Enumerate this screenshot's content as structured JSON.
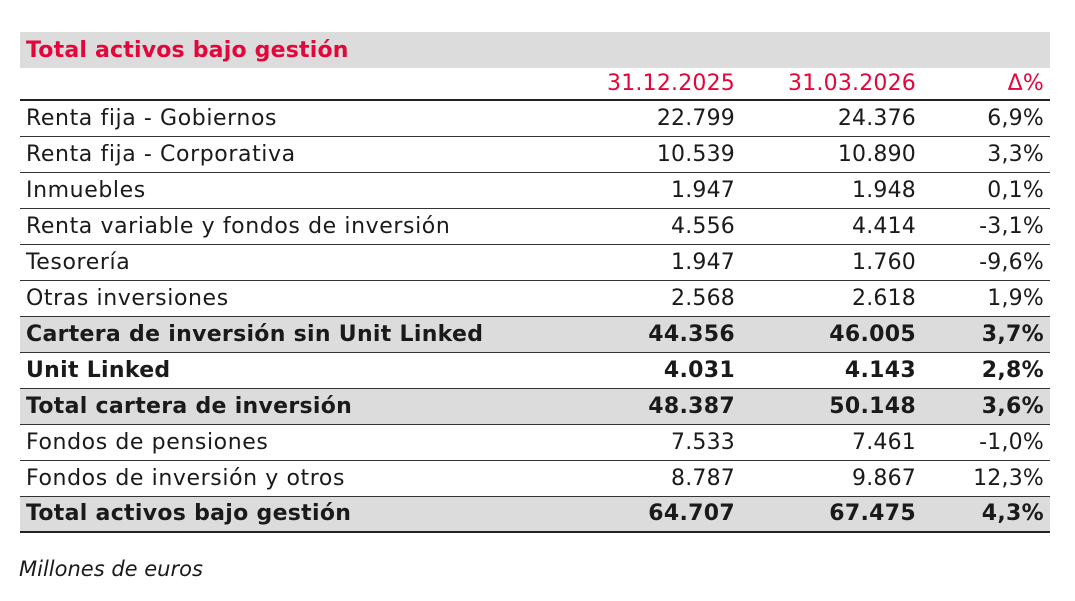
{
  "table": {
    "title": "Total activos bajo gestión",
    "columns": [
      "31.12.2025",
      "31.03.2026",
      "Δ%"
    ],
    "rows": [
      {
        "label": "Renta fija - Gobiernos",
        "values": [
          "22.799",
          "24.376",
          "6,9%"
        ],
        "bold": false,
        "shaded": false
      },
      {
        "label": "Renta fija - Corporativa",
        "values": [
          "10.539",
          "10.890",
          "3,3%"
        ],
        "bold": false,
        "shaded": false
      },
      {
        "label": "Inmuebles",
        "values": [
          "1.947",
          "1.948",
          "0,1%"
        ],
        "bold": false,
        "shaded": false
      },
      {
        "label": "Renta variable y fondos de inversión",
        "values": [
          "4.556",
          "4.414",
          "-3,1%"
        ],
        "bold": false,
        "shaded": false
      },
      {
        "label": "Tesorería",
        "values": [
          "1.947",
          "1.760",
          "-9,6%"
        ],
        "bold": false,
        "shaded": false
      },
      {
        "label": "Otras inversiones",
        "values": [
          "2.568",
          "2.618",
          "1,9%"
        ],
        "bold": false,
        "shaded": false
      },
      {
        "label": "Cartera de inversión sin Unit Linked",
        "values": [
          "44.356",
          "46.005",
          "3,7%"
        ],
        "bold": true,
        "shaded": true
      },
      {
        "label": "Unit Linked",
        "values": [
          "4.031",
          "4.143",
          "2,8%"
        ],
        "bold": true,
        "shaded": false
      },
      {
        "label": "Total cartera de inversión",
        "values": [
          "48.387",
          "50.148",
          "3,6%"
        ],
        "bold": true,
        "shaded": true
      },
      {
        "label": "Fondos de pensiones",
        "values": [
          "7.533",
          "7.461",
          "-1,0%"
        ],
        "bold": false,
        "shaded": false
      },
      {
        "label": "Fondos de inversión y otros",
        "values": [
          "8.787",
          "9.867",
          "12,3%"
        ],
        "bold": false,
        "shaded": false
      },
      {
        "label": "Total activos bajo gestión",
        "values": [
          "64.707",
          "67.475",
          "4,3%"
        ],
        "bold": true,
        "shaded": true
      }
    ],
    "footnote": "Millones de euros"
  },
  "colors": {
    "accent": "#e3063a",
    "shade": "#dcdcdc",
    "rule": "#333333"
  }
}
